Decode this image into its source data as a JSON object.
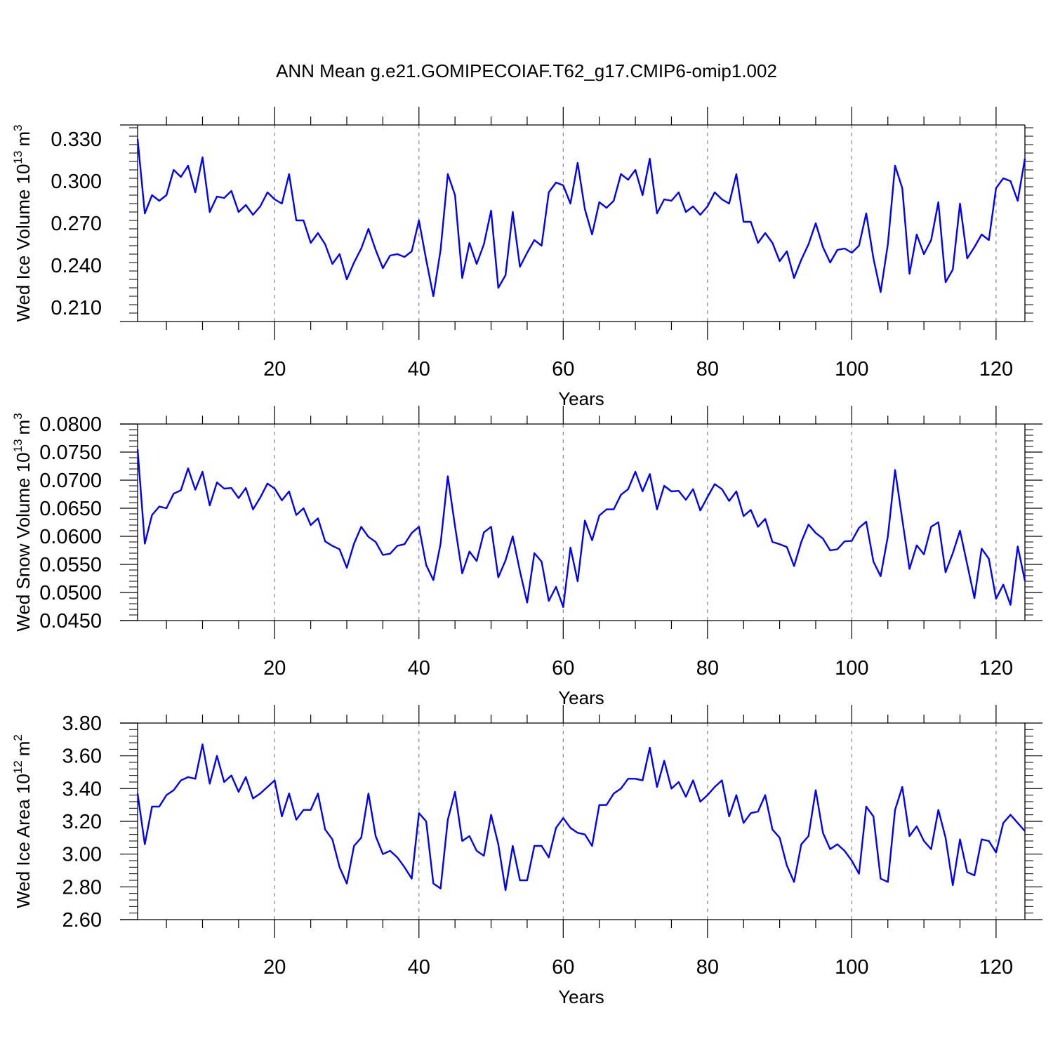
{
  "title": "ANN Mean g.e21.GOMIPECOIAF.T62_g17.CMIP6-omip1.002",
  "colors": {
    "line": "#0000ff",
    "axis": "#000000",
    "grid": "#888888"
  },
  "chart_data": [
    {
      "type": "line",
      "ylabel": "Wed Ice Volume 10",
      "ylabel_sup": "13",
      "ylabel_unit": "m",
      "ylabel_unit_sup": "3",
      "xlabel": "Years",
      "xlim": [
        1,
        124
      ],
      "ylim": [
        0.2,
        0.34
      ],
      "yticks": [
        0.21,
        0.24,
        0.27,
        0.3,
        0.33
      ],
      "ytick_labels": [
        "0.210",
        "0.240",
        "0.270",
        "0.300",
        "0.330"
      ],
      "xticks": [
        20,
        40,
        60,
        80,
        100,
        120
      ],
      "xtick_labels": [
        "20",
        "40",
        "60",
        "80",
        "100",
        "120"
      ],
      "grid": "vertical dashed at x ticks",
      "values": [
        0.33,
        0.277,
        0.29,
        0.286,
        0.29,
        0.308,
        0.303,
        0.311,
        0.292,
        0.317,
        0.278,
        0.289,
        0.288,
        0.293,
        0.278,
        0.283,
        0.276,
        0.282,
        0.292,
        0.287,
        0.284,
        0.305,
        0.272,
        0.272,
        0.256,
        0.263,
        0.255,
        0.241,
        0.248,
        0.23,
        0.242,
        0.252,
        0.266,
        0.251,
        0.238,
        0.247,
        0.248,
        0.246,
        0.25,
        0.272,
        0.244,
        0.218,
        0.251,
        0.305,
        0.29,
        0.231,
        0.256,
        0.241,
        0.255,
        0.279,
        0.224,
        0.233,
        0.278,
        0.239,
        0.249,
        0.258,
        0.254,
        0.292,
        0.299,
        0.297,
        0.284,
        0.313,
        0.28,
        0.262,
        0.285,
        0.281,
        0.286,
        0.305,
        0.301,
        0.308,
        0.29,
        0.316,
        0.277,
        0.287,
        0.286,
        0.292,
        0.278,
        0.282,
        0.276,
        0.282,
        0.292,
        0.287,
        0.284,
        0.305,
        0.271,
        0.271,
        0.256,
        0.263,
        0.256,
        0.243,
        0.25,
        0.231,
        0.244,
        0.255,
        0.27,
        0.253,
        0.242,
        0.251,
        0.252,
        0.249,
        0.254,
        0.277,
        0.245,
        0.221,
        0.255,
        0.311,
        0.295,
        0.234,
        0.262,
        0.248,
        0.258,
        0.285,
        0.228,
        0.237,
        0.284,
        0.245,
        0.253,
        0.262,
        0.258,
        0.295,
        0.302,
        0.3,
        0.286,
        0.316
      ]
    },
    {
      "type": "line",
      "ylabel": "Wed Snow Volume 10",
      "ylabel_sup": "13",
      "ylabel_unit": "m",
      "ylabel_unit_sup": "3",
      "xlabel": "Years",
      "xlim": [
        1,
        124
      ],
      "ylim": [
        0.045,
        0.08
      ],
      "yticks": [
        0.045,
        0.05,
        0.055,
        0.06,
        0.065,
        0.07,
        0.075,
        0.08
      ],
      "ytick_labels": [
        "0.0450",
        "0.0500",
        "0.0550",
        "0.0600",
        "0.0650",
        "0.0700",
        "0.0750",
        "0.0800"
      ],
      "xticks": [
        20,
        40,
        60,
        80,
        100,
        120
      ],
      "xtick_labels": [
        "20",
        "40",
        "60",
        "80",
        "100",
        "120"
      ],
      "grid": "vertical dashed at x ticks",
      "values": [
        0.0755,
        0.0587,
        0.0638,
        0.0653,
        0.065,
        0.0676,
        0.0682,
        0.0721,
        0.0683,
        0.0715,
        0.0655,
        0.0696,
        0.0685,
        0.0686,
        0.0668,
        0.0686,
        0.0648,
        0.0669,
        0.0694,
        0.0685,
        0.0664,
        0.068,
        0.0638,
        0.065,
        0.062,
        0.0632,
        0.0591,
        0.0583,
        0.0577,
        0.0544,
        0.0587,
        0.0617,
        0.0599,
        0.059,
        0.0567,
        0.0569,
        0.0583,
        0.0586,
        0.0606,
        0.0617,
        0.0549,
        0.0522,
        0.0587,
        0.0707,
        0.0618,
        0.0534,
        0.0573,
        0.0556,
        0.0607,
        0.0617,
        0.0527,
        0.0557,
        0.06,
        0.0538,
        0.0482,
        0.057,
        0.0555,
        0.0485,
        0.051,
        0.0474,
        0.058,
        0.052,
        0.0628,
        0.0593,
        0.0637,
        0.0648,
        0.0648,
        0.0674,
        0.0684,
        0.0715,
        0.068,
        0.0711,
        0.0648,
        0.069,
        0.068,
        0.0681,
        0.0665,
        0.0684,
        0.0646,
        0.067,
        0.0693,
        0.0684,
        0.0663,
        0.068,
        0.0636,
        0.0647,
        0.0617,
        0.0631,
        0.059,
        0.0586,
        0.0581,
        0.0547,
        0.059,
        0.0621,
        0.0606,
        0.0596,
        0.0575,
        0.0577,
        0.0591,
        0.0592,
        0.0615,
        0.0626,
        0.0555,
        0.0529,
        0.06,
        0.0718,
        0.063,
        0.0542,
        0.0584,
        0.0568,
        0.0617,
        0.0625,
        0.0536,
        0.057,
        0.061,
        0.055,
        0.049,
        0.0578,
        0.056,
        0.0489,
        0.0514,
        0.0478,
        0.0582,
        0.0521
      ]
    },
    {
      "type": "line",
      "ylabel": "Wed Ice Area 10",
      "ylabel_sup": "12",
      "ylabel_unit": "m",
      "ylabel_unit_sup": "2",
      "xlabel": "Years",
      "xlim": [
        1,
        124
      ],
      "ylim": [
        2.6,
        3.8
      ],
      "yticks": [
        2.6,
        2.8,
        3.0,
        3.2,
        3.4,
        3.6,
        3.8
      ],
      "ytick_labels": [
        "2.60",
        "2.80",
        "3.00",
        "3.20",
        "3.40",
        "3.60",
        "3.80"
      ],
      "xticks": [
        20,
        40,
        60,
        80,
        100,
        120
      ],
      "xtick_labels": [
        "20",
        "40",
        "60",
        "80",
        "100",
        "120"
      ],
      "grid": "vertical dashed at x ticks",
      "values": [
        3.37,
        3.06,
        3.29,
        3.29,
        3.36,
        3.39,
        3.45,
        3.47,
        3.46,
        3.67,
        3.43,
        3.6,
        3.44,
        3.48,
        3.38,
        3.47,
        3.34,
        3.37,
        3.41,
        3.45,
        3.23,
        3.37,
        3.21,
        3.27,
        3.27,
        3.37,
        3.15,
        3.09,
        2.92,
        2.82,
        3.05,
        3.1,
        3.37,
        3.11,
        3.0,
        3.02,
        2.98,
        2.92,
        2.85,
        3.25,
        3.2,
        2.82,
        2.79,
        3.21,
        3.38,
        3.08,
        3.11,
        3.02,
        2.99,
        3.24,
        3.06,
        2.78,
        3.05,
        2.84,
        2.84,
        3.05,
        3.05,
        2.98,
        3.16,
        3.22,
        3.16,
        3.13,
        3.12,
        3.05,
        3.3,
        3.3,
        3.37,
        3.4,
        3.46,
        3.46,
        3.45,
        3.65,
        3.41,
        3.57,
        3.4,
        3.44,
        3.35,
        3.45,
        3.32,
        3.36,
        3.41,
        3.45,
        3.23,
        3.36,
        3.19,
        3.25,
        3.26,
        3.36,
        3.15,
        3.1,
        2.93,
        2.83,
        3.06,
        3.11,
        3.39,
        3.13,
        3.03,
        3.06,
        3.02,
        2.96,
        2.88,
        3.29,
        3.23,
        2.85,
        2.83,
        3.27,
        3.41,
        3.11,
        3.17,
        3.08,
        3.03,
        3.27,
        3.1,
        2.81,
        3.09,
        2.89,
        2.87,
        3.09,
        3.08,
        3.01,
        3.19,
        3.24,
        3.19,
        3.14
      ]
    }
  ]
}
